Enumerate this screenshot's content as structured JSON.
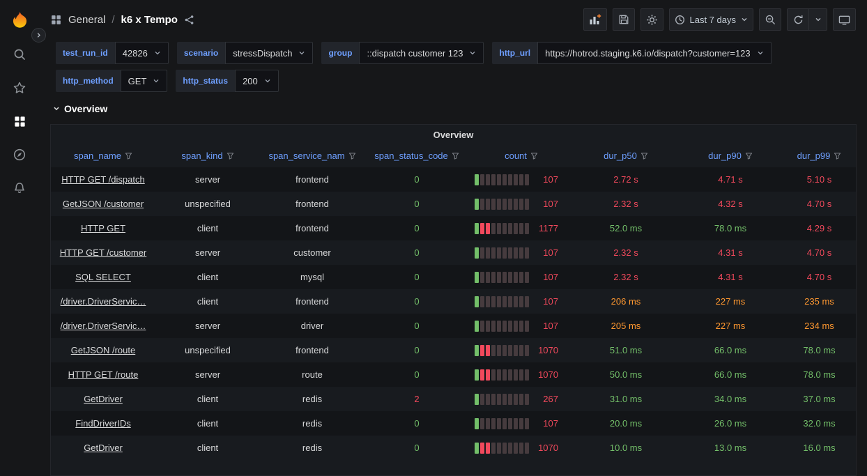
{
  "colors": {
    "green": "#73bf69",
    "red": "#f2495c",
    "orange": "#ff9830",
    "blue": "#6e9fff",
    "gauge_unlit": "#463b3e",
    "logo_orange": "#f05a28"
  },
  "sidebar": {
    "icons": [
      "search",
      "starred",
      "dashboards",
      "explore",
      "alerting"
    ],
    "active_icon": "dashboards"
  },
  "header": {
    "breadcrumb": {
      "section": "General",
      "separator": "/",
      "title": "k6 x Tempo"
    },
    "time_range_label": "Last 7 days"
  },
  "variables": {
    "rows": [
      [
        {
          "label": "test_run_id",
          "value": "42826"
        },
        {
          "label": "scenario",
          "value": "stressDispatch"
        },
        {
          "label": "group",
          "value": "::dispatch customer 123"
        },
        {
          "label": "http_url",
          "value": "https://hotrod.staging.k6.io/dispatch?customer=123"
        }
      ],
      [
        {
          "label": "http_method",
          "value": "GET"
        },
        {
          "label": "http_status",
          "value": "200"
        }
      ]
    ]
  },
  "section": {
    "title": "Overview"
  },
  "panel": {
    "title": "Overview"
  },
  "chart_data": {
    "type": "table",
    "title": "Overview",
    "gauge_segments": 10,
    "columns": [
      {
        "key": "span_name",
        "label": "span_name"
      },
      {
        "key": "span_kind",
        "label": "span_kind"
      },
      {
        "key": "span_service_name",
        "label": "span_service_nam"
      },
      {
        "key": "span_status_code",
        "label": "span_status_code"
      },
      {
        "key": "count",
        "label": "count"
      },
      {
        "key": "dur_p50",
        "label": "dur_p50"
      },
      {
        "key": "dur_p90",
        "label": "dur_p90"
      },
      {
        "key": "dur_p99",
        "label": "dur_p99"
      }
    ],
    "rows": [
      {
        "span_name": "HTTP GET /dispatch",
        "span_kind": "server",
        "span_service_name": "frontend",
        "span_status_code": "0",
        "span_status_color": "green",
        "count": "107",
        "count_gauge": [
          "green"
        ],
        "dur_p50": "2.72 s",
        "dur_p50_color": "red",
        "dur_p90": "4.71 s",
        "dur_p90_color": "red",
        "dur_p99": "5.10 s",
        "dur_p99_color": "red"
      },
      {
        "span_name": "GetJSON /customer",
        "span_kind": "unspecified",
        "span_service_name": "frontend",
        "span_status_code": "0",
        "span_status_color": "green",
        "count": "107",
        "count_gauge": [
          "green"
        ],
        "dur_p50": "2.32 s",
        "dur_p50_color": "red",
        "dur_p90": "4.32 s",
        "dur_p90_color": "red",
        "dur_p99": "4.70 s",
        "dur_p99_color": "red"
      },
      {
        "span_name": "HTTP GET",
        "span_kind": "client",
        "span_service_name": "frontend",
        "span_status_code": "0",
        "span_status_color": "green",
        "count": "1177",
        "count_gauge": [
          "green",
          "red",
          "red"
        ],
        "dur_p50": "52.0 ms",
        "dur_p50_color": "green",
        "dur_p90": "78.0 ms",
        "dur_p90_color": "green",
        "dur_p99": "4.29 s",
        "dur_p99_color": "red"
      },
      {
        "span_name": "HTTP GET /customer",
        "span_kind": "server",
        "span_service_name": "customer",
        "span_status_code": "0",
        "span_status_color": "green",
        "count": "107",
        "count_gauge": [
          "green"
        ],
        "dur_p50": "2.32 s",
        "dur_p50_color": "red",
        "dur_p90": "4.31 s",
        "dur_p90_color": "red",
        "dur_p99": "4.70 s",
        "dur_p99_color": "red"
      },
      {
        "span_name": "SQL SELECT",
        "span_kind": "client",
        "span_service_name": "mysql",
        "span_status_code": "0",
        "span_status_color": "green",
        "count": "107",
        "count_gauge": [
          "green"
        ],
        "dur_p50": "2.32 s",
        "dur_p50_color": "red",
        "dur_p90": "4.31 s",
        "dur_p90_color": "red",
        "dur_p99": "4.70 s",
        "dur_p99_color": "red"
      },
      {
        "span_name": "/driver.DriverServic…",
        "span_kind": "client",
        "span_service_name": "frontend",
        "span_status_code": "0",
        "span_status_color": "green",
        "count": "107",
        "count_gauge": [
          "green"
        ],
        "dur_p50": "206 ms",
        "dur_p50_color": "orange",
        "dur_p90": "227 ms",
        "dur_p90_color": "orange",
        "dur_p99": "235 ms",
        "dur_p99_color": "orange"
      },
      {
        "span_name": "/driver.DriverServic…",
        "span_kind": "server",
        "span_service_name": "driver",
        "span_status_code": "0",
        "span_status_color": "green",
        "count": "107",
        "count_gauge": [
          "green"
        ],
        "dur_p50": "205 ms",
        "dur_p50_color": "orange",
        "dur_p90": "227 ms",
        "dur_p90_color": "orange",
        "dur_p99": "234 ms",
        "dur_p99_color": "orange"
      },
      {
        "span_name": "GetJSON /route",
        "span_kind": "unspecified",
        "span_service_name": "frontend",
        "span_status_code": "0",
        "span_status_color": "green",
        "count": "1070",
        "count_gauge": [
          "green",
          "red",
          "red"
        ],
        "dur_p50": "51.0 ms",
        "dur_p50_color": "green",
        "dur_p90": "66.0 ms",
        "dur_p90_color": "green",
        "dur_p99": "78.0 ms",
        "dur_p99_color": "green"
      },
      {
        "span_name": "HTTP GET /route",
        "span_kind": "server",
        "span_service_name": "route",
        "span_status_code": "0",
        "span_status_color": "green",
        "count": "1070",
        "count_gauge": [
          "green",
          "red",
          "red"
        ],
        "dur_p50": "50.0 ms",
        "dur_p50_color": "green",
        "dur_p90": "66.0 ms",
        "dur_p90_color": "green",
        "dur_p99": "78.0 ms",
        "dur_p99_color": "green"
      },
      {
        "span_name": "GetDriver",
        "span_kind": "client",
        "span_service_name": "redis",
        "span_status_code": "2",
        "span_status_color": "red",
        "count": "267",
        "count_gauge": [
          "green"
        ],
        "dur_p50": "31.0 ms",
        "dur_p50_color": "green",
        "dur_p90": "34.0 ms",
        "dur_p90_color": "green",
        "dur_p99": "37.0 ms",
        "dur_p99_color": "green"
      },
      {
        "span_name": "FindDriverIDs",
        "span_kind": "client",
        "span_service_name": "redis",
        "span_status_code": "0",
        "span_status_color": "green",
        "count": "107",
        "count_gauge": [
          "green"
        ],
        "dur_p50": "20.0 ms",
        "dur_p50_color": "green",
        "dur_p90": "26.0 ms",
        "dur_p90_color": "green",
        "dur_p99": "32.0 ms",
        "dur_p99_color": "green"
      },
      {
        "span_name": "GetDriver",
        "span_kind": "client",
        "span_service_name": "redis",
        "span_status_code": "0",
        "span_status_color": "green",
        "count": "1070",
        "count_gauge": [
          "green",
          "red",
          "red"
        ],
        "dur_p50": "10.0 ms",
        "dur_p50_color": "green",
        "dur_p90": "13.0 ms",
        "dur_p90_color": "green",
        "dur_p99": "16.0 ms",
        "dur_p99_color": "green"
      }
    ]
  }
}
